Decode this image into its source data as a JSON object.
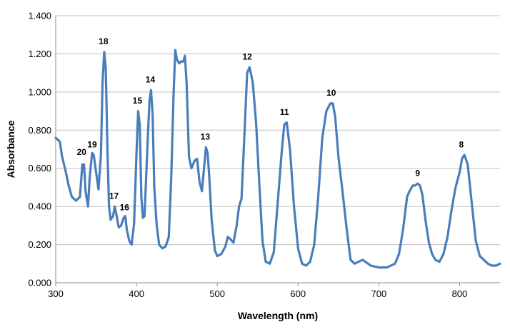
{
  "chart_data": {
    "type": "line",
    "title": "",
    "xlabel": "Wavelength (nm)",
    "ylabel": "Absorbance",
    "xlim": [
      300,
      850
    ],
    "ylim": [
      0,
      1.4
    ],
    "x_ticks": [
      "300",
      "400",
      "500",
      "600",
      "700",
      "800"
    ],
    "y_ticks": [
      "0.000",
      "0.200",
      "0.400",
      "0.600",
      "0.800",
      "1.000",
      "1.200",
      "1.400"
    ],
    "grid": "horizontal",
    "line_color": "#4a7ebb",
    "series": [
      {
        "x": [
          300,
          305,
          308,
          312,
          316,
          320,
          325,
          330,
          333,
          335,
          337,
          340,
          342,
          345,
          347,
          350,
          353,
          356,
          358,
          360,
          362,
          364,
          366,
          368,
          371,
          373,
          375,
          378,
          381,
          384,
          386,
          388,
          391,
          394,
          397,
          400,
          402,
          404,
          406,
          408,
          410,
          413,
          416,
          418,
          420,
          422,
          425,
          428,
          432,
          436,
          440,
          443,
          446,
          448,
          450,
          453,
          455,
          458,
          460,
          462,
          465,
          468,
          472,
          475,
          478,
          481,
          484,
          486,
          488,
          490,
          493,
          497,
          500,
          505,
          510,
          513,
          516,
          520,
          524,
          527,
          530,
          534,
          537,
          540,
          544,
          548,
          552,
          556,
          560,
          565,
          570,
          575,
          580,
          583,
          586,
          590,
          595,
          600,
          605,
          610,
          615,
          620,
          625,
          630,
          635,
          640,
          643,
          646,
          650,
          655,
          660,
          665,
          670,
          675,
          680,
          690,
          700,
          710,
          720,
          725,
          730,
          735,
          738,
          742,
          745,
          748,
          751,
          754,
          758,
          762,
          766,
          770,
          775,
          780,
          785,
          790,
          795,
          800,
          803,
          806,
          810,
          815,
          820,
          825,
          830,
          835,
          840,
          845,
          850
        ],
        "y": [
          0.76,
          0.74,
          0.66,
          0.59,
          0.51,
          0.45,
          0.43,
          0.45,
          0.62,
          0.62,
          0.48,
          0.4,
          0.55,
          0.68,
          0.67,
          0.58,
          0.49,
          0.67,
          1.05,
          1.21,
          1.12,
          0.7,
          0.4,
          0.33,
          0.35,
          0.4,
          0.36,
          0.29,
          0.3,
          0.34,
          0.35,
          0.28,
          0.22,
          0.2,
          0.31,
          0.68,
          0.9,
          0.83,
          0.45,
          0.34,
          0.35,
          0.66,
          0.95,
          1.01,
          0.88,
          0.5,
          0.3,
          0.2,
          0.18,
          0.19,
          0.24,
          0.55,
          1.0,
          1.22,
          1.17,
          1.15,
          1.16,
          1.16,
          1.19,
          1.05,
          0.66,
          0.6,
          0.64,
          0.65,
          0.53,
          0.48,
          0.62,
          0.71,
          0.68,
          0.56,
          0.33,
          0.17,
          0.14,
          0.15,
          0.19,
          0.24,
          0.23,
          0.21,
          0.3,
          0.4,
          0.44,
          0.81,
          1.1,
          1.13,
          1.05,
          0.84,
          0.52,
          0.22,
          0.11,
          0.1,
          0.16,
          0.43,
          0.7,
          0.83,
          0.84,
          0.7,
          0.4,
          0.18,
          0.1,
          0.09,
          0.11,
          0.2,
          0.45,
          0.76,
          0.9,
          0.94,
          0.94,
          0.87,
          0.66,
          0.48,
          0.29,
          0.12,
          0.1,
          0.11,
          0.12,
          0.09,
          0.08,
          0.08,
          0.1,
          0.15,
          0.28,
          0.45,
          0.48,
          0.51,
          0.51,
          0.52,
          0.51,
          0.46,
          0.32,
          0.21,
          0.15,
          0.12,
          0.11,
          0.15,
          0.24,
          0.38,
          0.5,
          0.58,
          0.65,
          0.67,
          0.62,
          0.42,
          0.22,
          0.14,
          0.12,
          0.1,
          0.09,
          0.09,
          0.1
        ]
      }
    ],
    "annotations": [
      {
        "label": "20",
        "x": 333,
        "y": 0.64
      },
      {
        "label": "19",
        "x": 346,
        "y": 0.68
      },
      {
        "label": "18",
        "x": 360,
        "y": 1.22
      },
      {
        "label": "17",
        "x": 373,
        "y": 0.41
      },
      {
        "label": "16",
        "x": 386,
        "y": 0.35
      },
      {
        "label": "15",
        "x": 402,
        "y": 0.91
      },
      {
        "label": "14",
        "x": 418,
        "y": 1.02
      },
      {
        "label": "13",
        "x": 486,
        "y": 0.72
      },
      {
        "label": "12",
        "x": 538,
        "y": 1.14
      },
      {
        "label": "11",
        "x": 584,
        "y": 0.85
      },
      {
        "label": "10",
        "x": 642,
        "y": 0.95
      },
      {
        "label": "9",
        "x": 749,
        "y": 0.53
      },
      {
        "label": "8",
        "x": 803,
        "y": 0.68
      }
    ]
  }
}
